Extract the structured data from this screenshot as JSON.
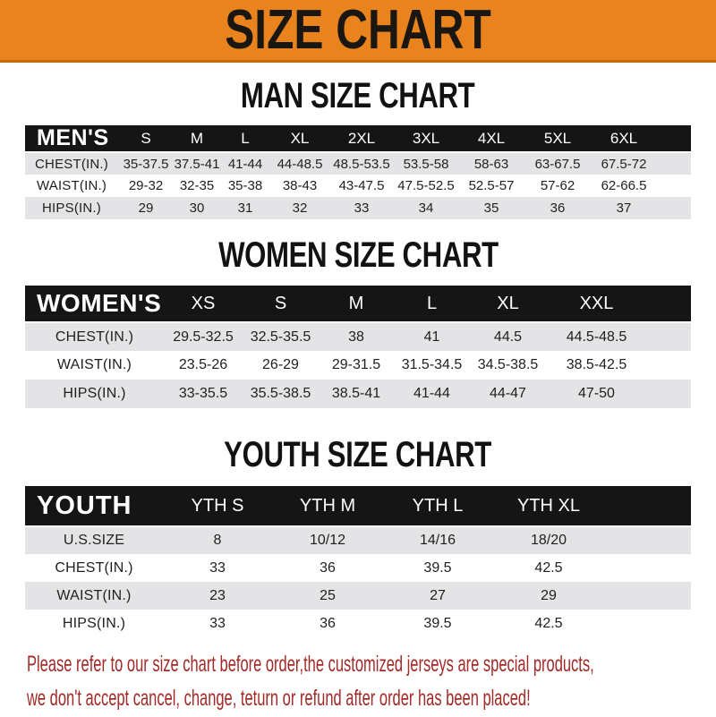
{
  "banner": {
    "title": "SIZE CHART"
  },
  "sections": [
    {
      "heading": "MAN SIZE CHART",
      "header_label": "MEN'S",
      "columns": [
        "S",
        "M",
        "L",
        "XL",
        "2XL",
        "3XL",
        "4XL",
        "5XL",
        "6XL"
      ],
      "rows": [
        {
          "label": "CHEST(IN.)",
          "values": [
            "35-37.5",
            "37.5-41",
            "41-44",
            "44-48.5",
            "48.5-53.5",
            "53.5-58",
            "58-63",
            "63-67.5",
            "67.5-72"
          ]
        },
        {
          "label": "WAIST(IN.)",
          "values": [
            "29-32",
            "32-35",
            "35-38",
            "38-43",
            "43-47.5",
            "47.5-52.5",
            "52.5-57",
            "57-62",
            "62-66.5"
          ]
        },
        {
          "label": "HIPS(IN.)",
          "values": [
            "29",
            "30",
            "31",
            "32",
            "33",
            "34",
            "35",
            "36",
            "37"
          ]
        }
      ]
    },
    {
      "heading": "WOMEN SIZE CHART",
      "header_label": "WOMEN'S",
      "columns": [
        "XS",
        "S",
        "M",
        "L",
        "XL",
        "XXL"
      ],
      "rows": [
        {
          "label": "CHEST(IN.)",
          "values": [
            "29.5-32.5",
            "32.5-35.5",
            "38",
            "41",
            "44.5",
            "44.5-48.5"
          ]
        },
        {
          "label": "WAIST(IN.)",
          "values": [
            "23.5-26",
            "26-29",
            "29-31.5",
            "31.5-34.5",
            "34.5-38.5",
            "38.5-42.5"
          ]
        },
        {
          "label": "HIPS(IN.)",
          "values": [
            "33-35.5",
            "35.5-38.5",
            "38.5-41",
            "41-44",
            "44-47",
            "47-50"
          ]
        }
      ]
    },
    {
      "heading": "YOUTH SIZE CHART",
      "header_label": "YOUTH",
      "columns": [
        "YTH S",
        "YTH M",
        "YTH L",
        "YTH XL"
      ],
      "rows": [
        {
          "label": "U.S.SIZE",
          "values": [
            "8",
            "10/12",
            "14/16",
            "18/20"
          ]
        },
        {
          "label": "CHEST(IN.)",
          "values": [
            "33",
            "36",
            "39.5",
            "42.5"
          ]
        },
        {
          "label": "WAIST(IN.)",
          "values": [
            "23",
            "25",
            "27",
            "29"
          ]
        },
        {
          "label": "HIPS(IN.)",
          "values": [
            "33",
            "36",
            "39.5",
            "42.5"
          ]
        }
      ]
    }
  ],
  "footer_note": {
    "line1": "Please refer to our size chart before order,the customized jerseys are special products,",
    "line2": "we don't accept cancel, change, teturn or refund after order has been placed!"
  },
  "colors": {
    "banner_orange": "#E8831E",
    "header_band_black": "#151515",
    "row_stripe_gray": "#E4E4E6",
    "note_red": "#A22B28"
  }
}
